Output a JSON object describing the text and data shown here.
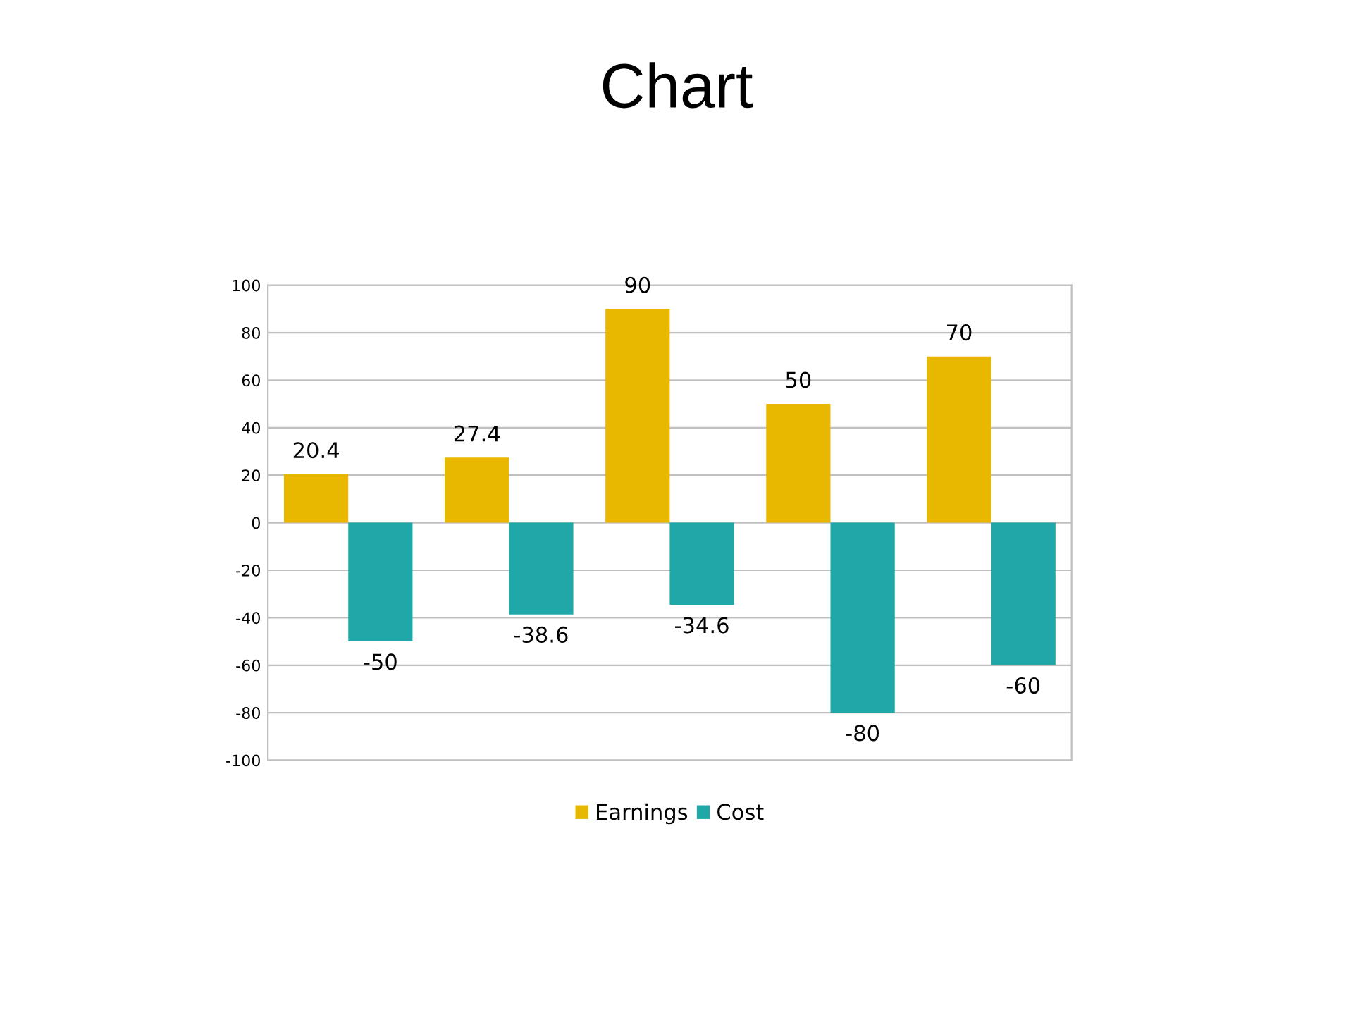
{
  "chart_data": {
    "type": "bar",
    "title": "Chart",
    "categories": [
      null,
      null,
      null,
      null,
      null
    ],
    "series": [
      {
        "name": "Earnings",
        "color": "#e8b800",
        "values": [
          20.4,
          27.4,
          90,
          50,
          70
        ]
      },
      {
        "name": "Cost",
        "color": "#20a8a8",
        "values": [
          -50,
          -38.6,
          -34.6,
          -80,
          -60
        ]
      }
    ],
    "ylim": [
      -100,
      100
    ],
    "yticks": [
      -100,
      -80,
      -60,
      -40,
      -20,
      0,
      20,
      40,
      60,
      80,
      100
    ],
    "grid": "y",
    "legend": "bottom",
    "data_labels": true
  }
}
